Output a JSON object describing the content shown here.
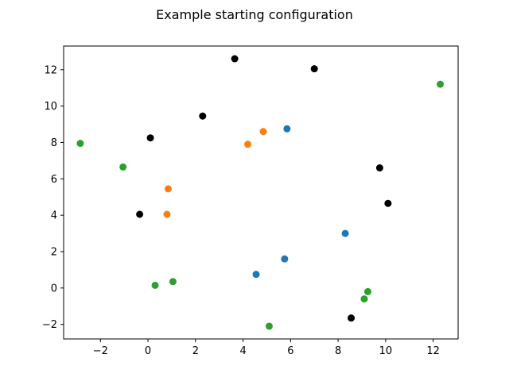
{
  "chart_data": {
    "type": "scatter",
    "title": "Example starting configuration",
    "xlabel": "",
    "ylabel": "",
    "xlim": [
      -3.55,
      13.05
    ],
    "ylim": [
      -2.8,
      13.3
    ],
    "xticks": [
      -2,
      0,
      2,
      4,
      6,
      8,
      10,
      12
    ],
    "yticks": [
      -2,
      0,
      2,
      4,
      6,
      8,
      10,
      12
    ],
    "xtick_labels": [
      "−2",
      "0",
      "2",
      "4",
      "6",
      "8",
      "10",
      "12"
    ],
    "ytick_labels": [
      "−2",
      "0",
      "2",
      "4",
      "6",
      "8",
      "10",
      "12"
    ],
    "grid": false,
    "series": [
      {
        "color": "#000000",
        "points": [
          {
            "x": 3.65,
            "y": 12.6
          },
          {
            "x": 7.0,
            "y": 12.05
          },
          {
            "x": 2.3,
            "y": 9.45
          },
          {
            "x": 0.1,
            "y": 8.25
          },
          {
            "x": 9.75,
            "y": 6.6
          },
          {
            "x": 10.1,
            "y": 4.65
          },
          {
            "x": -0.35,
            "y": 4.05
          },
          {
            "x": 8.55,
            "y": -1.65
          }
        ]
      },
      {
        "color": "#1f77b4",
        "points": [
          {
            "x": 5.85,
            "y": 8.75
          },
          {
            "x": 8.3,
            "y": 3.0
          },
          {
            "x": 5.75,
            "y": 1.6
          },
          {
            "x": 4.55,
            "y": 0.75
          }
        ]
      },
      {
        "color": "#ff7f0e",
        "points": [
          {
            "x": 4.85,
            "y": 8.6
          },
          {
            "x": 4.2,
            "y": 7.9
          },
          {
            "x": 0.85,
            "y": 5.45
          },
          {
            "x": 0.8,
            "y": 4.05
          }
        ]
      },
      {
        "color": "#2ca02c",
        "points": [
          {
            "x": 12.3,
            "y": 11.2
          },
          {
            "x": -2.85,
            "y": 7.95
          },
          {
            "x": -1.05,
            "y": 6.65
          },
          {
            "x": 1.05,
            "y": 0.35
          },
          {
            "x": 0.3,
            "y": 0.15
          },
          {
            "x": 9.25,
            "y": -0.2
          },
          {
            "x": 9.1,
            "y": -0.6
          },
          {
            "x": 5.1,
            "y": -2.1
          }
        ]
      }
    ]
  }
}
